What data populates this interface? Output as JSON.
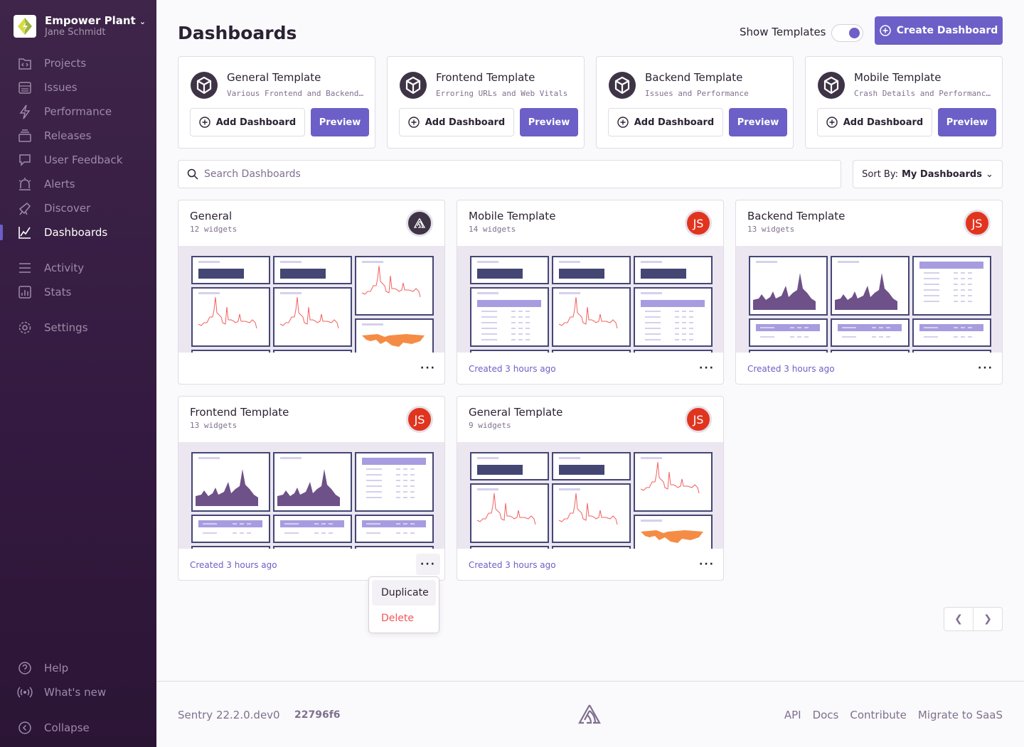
{
  "sidebar": {
    "org_name": "Empower Plant",
    "user_name": "Jane Schmidt",
    "items": [
      {
        "label": "Projects",
        "icon": "projects-icon"
      },
      {
        "label": "Issues",
        "icon": "issues-icon"
      },
      {
        "label": "Performance",
        "icon": "performance-icon"
      },
      {
        "label": "Releases",
        "icon": "releases-icon"
      },
      {
        "label": "User Feedback",
        "icon": "user-feedback-icon"
      },
      {
        "label": "Alerts",
        "icon": "alerts-icon"
      },
      {
        "label": "Discover",
        "icon": "discover-icon"
      },
      {
        "label": "Dashboards",
        "icon": "dashboards-icon",
        "active": true
      },
      {
        "label": "Activity",
        "icon": "activity-icon"
      },
      {
        "label": "Stats",
        "icon": "stats-icon"
      },
      {
        "label": "Settings",
        "icon": "settings-icon"
      }
    ],
    "bottom": [
      {
        "label": "Help",
        "icon": "help-icon"
      },
      {
        "label": "What's new",
        "icon": "broadcast-icon"
      },
      {
        "label": "Collapse",
        "icon": "collapse-icon"
      }
    ]
  },
  "header": {
    "title": "Dashboards",
    "show_templates_label": "Show Templates",
    "show_templates_on": true,
    "create_label": "Create Dashboard"
  },
  "templates": [
    {
      "name": "General Template",
      "desc": "Various Frontend and Backend Widgets",
      "add": "Add Dashboard",
      "preview": "Preview"
    },
    {
      "name": "Frontend Template",
      "desc": "Erroring URLs and Web Vitals",
      "add": "Add Dashboard",
      "preview": "Preview"
    },
    {
      "name": "Backend Template",
      "desc": "Issues and Performance",
      "add": "Add Dashboard",
      "preview": "Preview"
    },
    {
      "name": "Mobile Template",
      "desc": "Crash Details and Performance Vitals",
      "add": "Add Dashboard",
      "preview": "Preview"
    }
  ],
  "search": {
    "placeholder": "Search Dashboards"
  },
  "sort": {
    "label": "Sort By:",
    "value": "My Dashboards"
  },
  "dashboards": [
    {
      "name": "General",
      "widgets": "12 widgets",
      "avatar": "",
      "avatar_type": "sentry",
      "created": "",
      "preview": "general"
    },
    {
      "name": "Mobile Template",
      "widgets": "14 widgets",
      "avatar": "JS",
      "avatar_type": "js",
      "created": "Created 3 hours ago",
      "preview": "mobile"
    },
    {
      "name": "Backend Template",
      "widgets": "13 widgets",
      "avatar": "JS",
      "avatar_type": "js",
      "created": "Created 3 hours ago",
      "preview": "backend"
    },
    {
      "name": "Frontend Template",
      "widgets": "13 widgets",
      "avatar": "JS",
      "avatar_type": "js",
      "created": "Created 3 hours ago",
      "preview": "backend"
    },
    {
      "name": "General Template",
      "widgets": "9 widgets",
      "avatar": "JS",
      "avatar_type": "js",
      "created": "Created 3 hours ago",
      "preview": "general"
    }
  ],
  "menu": {
    "duplicate": "Duplicate",
    "delete": "Delete"
  },
  "footer": {
    "version": "Sentry 22.2.0.dev0",
    "hash": "22796f6",
    "links": [
      "API",
      "Docs",
      "Contribute",
      "Migrate to SaaS"
    ]
  },
  "colors": {
    "accent": "#6c5fc7",
    "js_avatar": "#e1341e",
    "danger": "#f55459",
    "chart_line": "#f0615f",
    "area": "#6e5188",
    "map": "#f58c46"
  }
}
